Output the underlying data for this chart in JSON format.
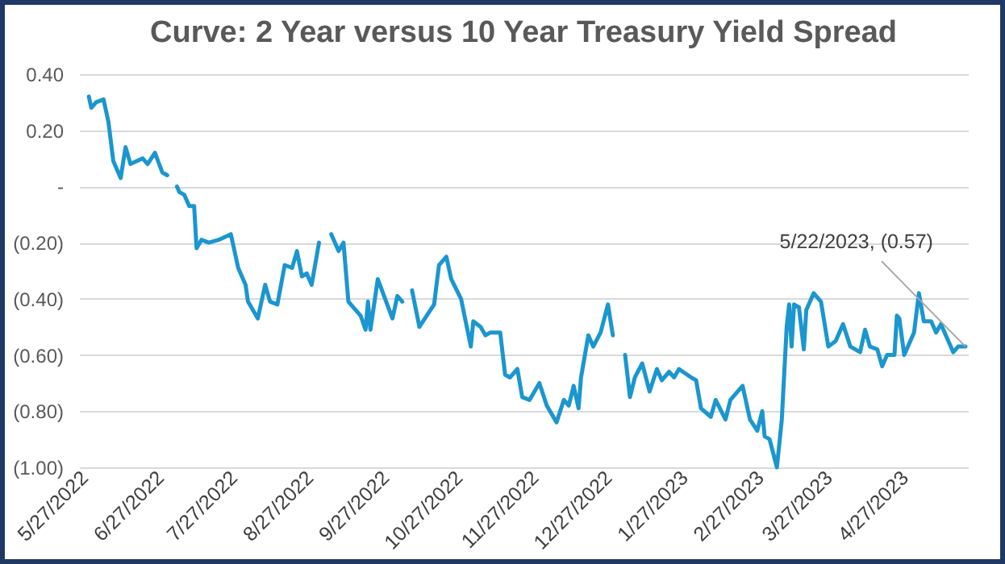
{
  "chart_data": {
    "type": "line",
    "title": "Curve: 2 Year versus 10 Year Treasury Yield Spread",
    "x": [
      "2022-05-29",
      "2022-05-30",
      "2022-06-01",
      "2022-06-04",
      "2022-06-06",
      "2022-06-08",
      "2022-06-11",
      "2022-06-13",
      "2022-06-15",
      "2022-06-20",
      "2022-06-22",
      "2022-06-25",
      "2022-06-28",
      "2022-06-30",
      "2022-07-02",
      "2022-07-04",
      "2022-07-05",
      "2022-07-07",
      "2022-07-09",
      "2022-07-11",
      "2022-07-12",
      "2022-07-14",
      "2022-07-17",
      "2022-07-21",
      "2022-07-26",
      "2022-07-29",
      "2022-08-01",
      "2022-08-02",
      "2022-08-06",
      "2022-08-09",
      "2022-08-11",
      "2022-08-14",
      "2022-08-17",
      "2022-08-20",
      "2022-08-22",
      "2022-08-24",
      "2022-08-26",
      "2022-08-28",
      "2022-08-31",
      "2022-09-03",
      "2022-09-05",
      "2022-09-08",
      "2022-09-10",
      "2022-09-12",
      "2022-09-15",
      "2022-09-17",
      "2022-09-19",
      "2022-09-20",
      "2022-09-21",
      "2022-09-24",
      "2022-09-27",
      "2022-09-30",
      "2022-10-02",
      "2022-10-04",
      "2022-10-06",
      "2022-10-08",
      "2022-10-11",
      "2022-10-17",
      "2022-10-19",
      "2022-10-22",
      "2022-10-24",
      "2022-10-28",
      "2022-11-01",
      "2022-11-02",
      "2022-11-05",
      "2022-11-07",
      "2022-11-09",
      "2022-11-13",
      "2022-11-15",
      "2022-11-17",
      "2022-11-20",
      "2022-11-22",
      "2022-11-25",
      "2022-11-29",
      "2022-12-02",
      "2022-12-06",
      "2022-12-09",
      "2022-12-11",
      "2022-12-13",
      "2022-12-15",
      "2022-12-16",
      "2022-12-19",
      "2022-12-21",
      "2022-12-24",
      "2022-12-27",
      "2022-12-29",
      "2023-01-01",
      "2023-01-03",
      "2023-01-05",
      "2023-01-07",
      "2023-01-10",
      "2023-01-13",
      "2023-01-16",
      "2023-01-18",
      "2023-01-21",
      "2023-01-23",
      "2023-01-25",
      "2023-01-30",
      "2023-02-01",
      "2023-02-03",
      "2023-02-07",
      "2023-02-09",
      "2023-02-13",
      "2023-02-15",
      "2023-02-20",
      "2023-02-23",
      "2023-02-26",
      "2023-02-28",
      "2023-03-01",
      "2023-03-03",
      "2023-03-06",
      "2023-03-08",
      "2023-03-10",
      "2023-03-11",
      "2023-03-12",
      "2023-03-13",
      "2023-03-15",
      "2023-03-17",
      "2023-03-18",
      "2023-03-21",
      "2023-03-24",
      "2023-03-27",
      "2023-03-30",
      "2023-04-02",
      "2023-04-05",
      "2023-04-09",
      "2023-04-11",
      "2023-04-13",
      "2023-04-16",
      "2023-04-18",
      "2023-04-20",
      "2023-04-23",
      "2023-04-24",
      "2023-04-25",
      "2023-04-27",
      "2023-05-01",
      "2023-05-03",
      "2023-05-05",
      "2023-05-08",
      "2023-05-10",
      "2023-05-12",
      "2023-05-14",
      "2023-05-17",
      "2023-05-19",
      "2023-05-22"
    ],
    "series": [
      {
        "color": "#1b96cf",
        "values": [
          0.32,
          0.28,
          0.3,
          0.31,
          0.23,
          0.09,
          0.03,
          0.14,
          0.08,
          0.1,
          0.08,
          0.12,
          0.05,
          0.04,
          null,
          0.0,
          -0.02,
          -0.03,
          -0.07,
          -0.07,
          -0.22,
          -0.19,
          -0.2,
          -0.19,
          -0.17,
          -0.29,
          -0.35,
          -0.41,
          -0.47,
          -0.35,
          -0.41,
          -0.42,
          -0.28,
          -0.29,
          -0.23,
          -0.32,
          -0.31,
          -0.35,
          -0.2,
          null,
          -0.17,
          -0.23,
          -0.2,
          -0.41,
          -0.44,
          -0.46,
          -0.51,
          -0.41,
          -0.51,
          -0.33,
          -0.4,
          -0.47,
          -0.39,
          -0.41,
          null,
          -0.37,
          -0.5,
          -0.42,
          -0.28,
          -0.25,
          -0.33,
          -0.4,
          -0.57,
          -0.48,
          -0.5,
          -0.53,
          -0.52,
          -0.52,
          -0.67,
          -0.68,
          -0.65,
          -0.75,
          -0.76,
          -0.7,
          -0.78,
          -0.84,
          -0.76,
          -0.78,
          -0.71,
          -0.79,
          -0.68,
          -0.53,
          -0.57,
          -0.52,
          -0.42,
          -0.53,
          null,
          -0.6,
          -0.75,
          -0.68,
          -0.63,
          -0.73,
          -0.65,
          -0.69,
          -0.66,
          -0.68,
          -0.65,
          -0.68,
          -0.69,
          -0.79,
          -0.82,
          -0.76,
          -0.83,
          -0.76,
          -0.71,
          -0.83,
          -0.87,
          -0.8,
          -0.89,
          -0.9,
          -1.0,
          -0.83,
          -0.5,
          -0.42,
          -0.57,
          -0.42,
          -0.43,
          -0.58,
          -0.44,
          -0.38,
          -0.41,
          -0.57,
          -0.55,
          -0.49,
          -0.57,
          -0.59,
          -0.51,
          -0.57,
          -0.58,
          -0.64,
          -0.6,
          -0.6,
          -0.46,
          -0.47,
          -0.6,
          -0.52,
          -0.38,
          -0.48,
          -0.48,
          -0.52,
          -0.49,
          -0.53,
          -0.59,
          -0.57,
          -0.57
        ]
      }
    ],
    "xlim": [
      "2022-05-25",
      "2023-05-23"
    ],
    "xticks": [
      {
        "value": "2022-05-27",
        "label": "5/27/2022"
      },
      {
        "value": "2022-06-27",
        "label": "6/27/2022"
      },
      {
        "value": "2022-07-27",
        "label": "7/27/2022"
      },
      {
        "value": "2022-08-27",
        "label": "8/27/2022"
      },
      {
        "value": "2022-09-27",
        "label": "9/27/2022"
      },
      {
        "value": "2022-10-27",
        "label": "10/27/2022"
      },
      {
        "value": "2022-11-27",
        "label": "11/27/2022"
      },
      {
        "value": "2022-12-27",
        "label": "12/27/2022"
      },
      {
        "value": "2023-01-27",
        "label": "1/27/2023"
      },
      {
        "value": "2023-02-27",
        "label": "2/27/2023"
      },
      {
        "value": "2023-03-27",
        "label": "3/27/2023"
      },
      {
        "value": "2023-04-27",
        "label": "4/27/2023"
      }
    ],
    "ylim": [
      -1.0,
      0.4
    ],
    "yticks": [
      {
        "value": -1.0,
        "label": "(1.00)"
      },
      {
        "value": -0.8,
        "label": "(0.80)"
      },
      {
        "value": -0.6,
        "label": "(0.60)"
      },
      {
        "value": -0.4,
        "label": "(0.40)"
      },
      {
        "value": -0.2,
        "label": "(0.20)"
      },
      {
        "value": 0,
        "label": "-"
      },
      {
        "value": 0.2,
        "label": "0.20"
      },
      {
        "value": 0.4,
        "label": "0.40"
      }
    ],
    "grid": "y",
    "legend": false,
    "marker": "none",
    "line_style": "solid",
    "annotations": [
      {
        "text": "5/22/2023, (0.57)",
        "x": "2023-05-22",
        "y": -0.57
      }
    ]
  }
}
